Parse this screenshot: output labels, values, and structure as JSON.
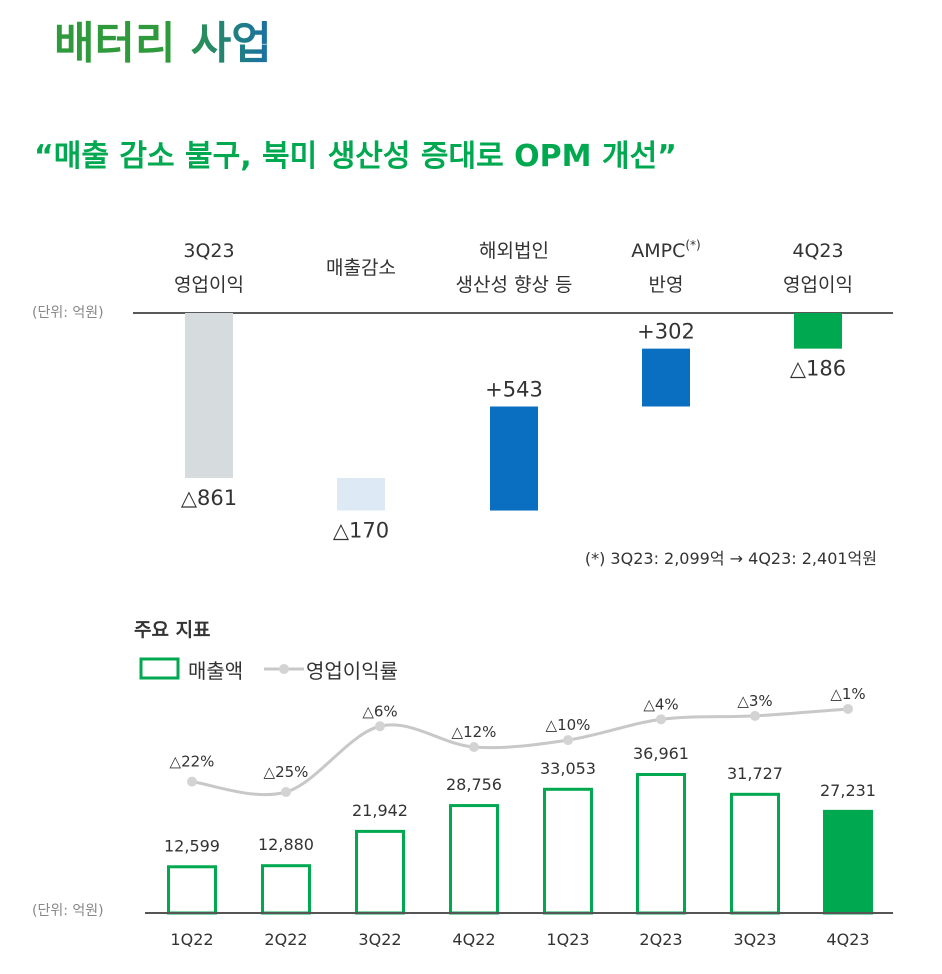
{
  "title": "배터리 사업",
  "subtitle": "“매출 감소 불구, 북미 생산성 증대로 OPM 개선”",
  "colors": {
    "green": "#00a84f",
    "title_green": "#2e9a3c",
    "title_blue": "#1a6fa8",
    "blue": "#0a6ec1",
    "gray_bar": "#d6dbde",
    "light_blue": "#dde9f5",
    "line_gray": "#c8c8c8",
    "text": "#333333"
  },
  "chart_data": [
    {
      "type": "waterfall",
      "unit_label": "(단위: 억원)",
      "categories": [
        {
          "lines": [
            "3Q23",
            "영업이익"
          ]
        },
        {
          "lines": [
            "매출감소"
          ]
        },
        {
          "lines": [
            "해외법인",
            "생산성 향상 등"
          ]
        },
        {
          "lines": [
            "AMPC",
            "반영"
          ],
          "superscript": "(*)"
        },
        {
          "lines": [
            "4Q23",
            "영업이익"
          ]
        }
      ],
      "values": [
        -861,
        -170,
        543,
        302,
        -186
      ],
      "kinds": [
        "total",
        "delta",
        "delta",
        "delta",
        "total"
      ],
      "labels": [
        "△861",
        "△170",
        "+543",
        "+302",
        "△186"
      ],
      "footnote": "(*) 3Q23: 2,099억 → 4Q23: 2,401억원"
    },
    {
      "type": "bar+line",
      "title": "주요 지표",
      "unit_label": "(단위: 억원)",
      "legend": {
        "bar": "매출액",
        "line": "영업이익률",
        "placement": "top-left"
      },
      "categories": [
        "1Q22",
        "2Q22",
        "3Q22",
        "4Q22",
        "1Q23",
        "2Q23",
        "3Q23",
        "4Q23"
      ],
      "bar_values": [
        12599,
        12880,
        21942,
        28756,
        33053,
        36961,
        31727,
        27231
      ],
      "bar_labels": [
        "12,599",
        "12,880",
        "21,942",
        "28,756",
        "33,053",
        "36,961",
        "31,727",
        "27,231"
      ],
      "line_values": [
        -22,
        -25,
        -6,
        -12,
        -10,
        -4,
        -3,
        -1
      ],
      "line_labels": [
        "△22%",
        "△25%",
        "△6%",
        "△12%",
        "△10%",
        "△4%",
        "△3%",
        "△1%"
      ],
      "highlight_last": true
    }
  ]
}
